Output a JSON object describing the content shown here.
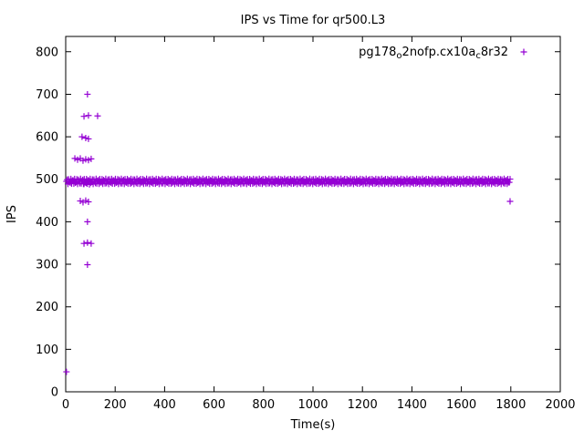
{
  "figure": {
    "background": "#ffffff",
    "axis_color": "#000000",
    "marker_color": "#9400d3"
  },
  "chart_data": {
    "type": "scatter",
    "title": "IPS vs Time for qr500.L3",
    "xlabel": "Time(s)",
    "ylabel": "IPS",
    "xlim": [
      0,
      2000
    ],
    "ylim": [
      0,
      836
    ],
    "x_ticks": [
      0,
      200,
      400,
      600,
      800,
      1000,
      1200,
      1400,
      1600,
      1800,
      2000
    ],
    "y_ticks": [
      0,
      100,
      200,
      300,
      400,
      500,
      600,
      700,
      800
    ],
    "grid": false,
    "legend": {
      "position": "top-right",
      "marker": "plus",
      "label": "pg178o2nofp.cx10ac8r32",
      "parts": [
        {
          "t": "pg178"
        },
        {
          "t": "o",
          "sub": true
        },
        {
          "t": "2nofp.cx10a"
        },
        {
          "t": "c",
          "sub": true
        },
        {
          "t": "8r32"
        }
      ]
    },
    "series": [
      {
        "name": "pg178_o2nofp.cx10a_c8r32",
        "marker": "plus",
        "color": "#9400d3",
        "outlier_points": [
          [
            3,
            47
          ],
          [
            88,
            700
          ],
          [
            74,
            648
          ],
          [
            92,
            650
          ],
          [
            129,
            649
          ],
          [
            66,
            600
          ],
          [
            81,
            597
          ],
          [
            92,
            595
          ],
          [
            37,
            549
          ],
          [
            48,
            546
          ],
          [
            59,
            549
          ],
          [
            70,
            544
          ],
          [
            81,
            547
          ],
          [
            92,
            545
          ],
          [
            103,
            548
          ],
          [
            74,
            489
          ],
          [
            85,
            491
          ],
          [
            96,
            488
          ],
          [
            59,
            449
          ],
          [
            70,
            446
          ],
          [
            81,
            450
          ],
          [
            92,
            447
          ],
          [
            88,
            400
          ],
          [
            74,
            349
          ],
          [
            88,
            351
          ],
          [
            103,
            349
          ],
          [
            88,
            299
          ],
          [
            1797,
            448
          ]
        ],
        "band": {
          "x_start": 3,
          "x_end": 1797,
          "step": 3,
          "y_center": 495,
          "y_spread": 6
        }
      }
    ]
  }
}
